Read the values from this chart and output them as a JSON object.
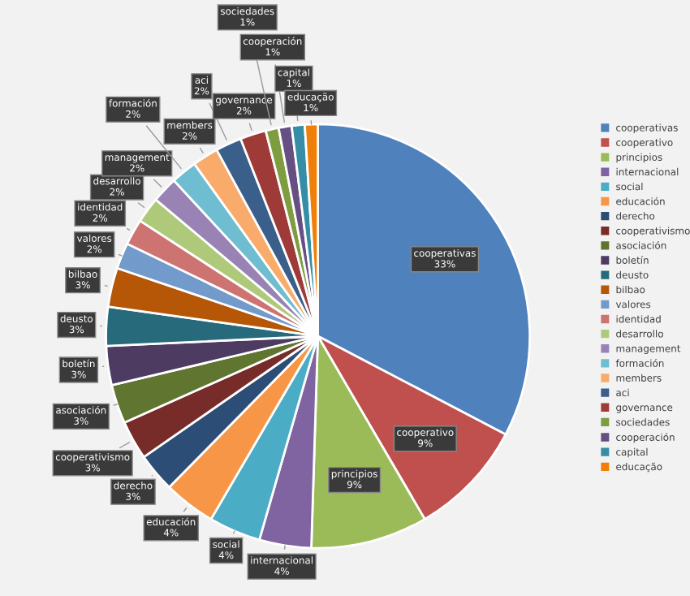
{
  "chart_data": {
    "type": "pie",
    "categories": [
      "cooperativas",
      "cooperativo",
      "principios",
      "internacional",
      "social",
      "educación",
      "derecho",
      "cooperativismo",
      "asociación",
      "boletín",
      "deusto",
      "bilbao",
      "valores",
      "identidad",
      "desarrollo",
      "management",
      "formación",
      "members",
      "aci",
      "governance",
      "sociedades",
      "cooperación",
      "capital",
      "educação"
    ],
    "values": [
      33,
      9,
      9,
      4,
      4,
      4,
      3,
      3,
      3,
      3,
      3,
      3,
      2,
      2,
      2,
      2,
      2,
      2,
      2,
      2,
      1,
      1,
      1,
      1
    ],
    "colors": [
      "#4f81bd",
      "#c0504d",
      "#9bbb59",
      "#8064a2",
      "#4bacc6",
      "#f79646",
      "#2c4d75",
      "#772c2a",
      "#5f7530",
      "#4d3b62",
      "#276a7c",
      "#b65708",
      "#729aca",
      "#cd7371",
      "#afc97a",
      "#9983b5",
      "#6fbdd1",
      "#f9ab6b",
      "#3a5f8b",
      "#9e3b38",
      "#7e9c40",
      "#664f83",
      "#358ea6",
      "#f07f09"
    ],
    "value_labels": [
      "33%",
      "9%",
      "9%",
      "4%",
      "4%",
      "4%",
      "3%",
      "3%",
      "3%",
      "3%",
      "3%",
      "3%",
      "2%",
      "2%",
      "2%",
      "2%",
      "2%",
      "2%",
      "2%",
      "2%",
      "1%",
      "1%",
      "1%",
      "1%"
    ],
    "legend": "right"
  }
}
